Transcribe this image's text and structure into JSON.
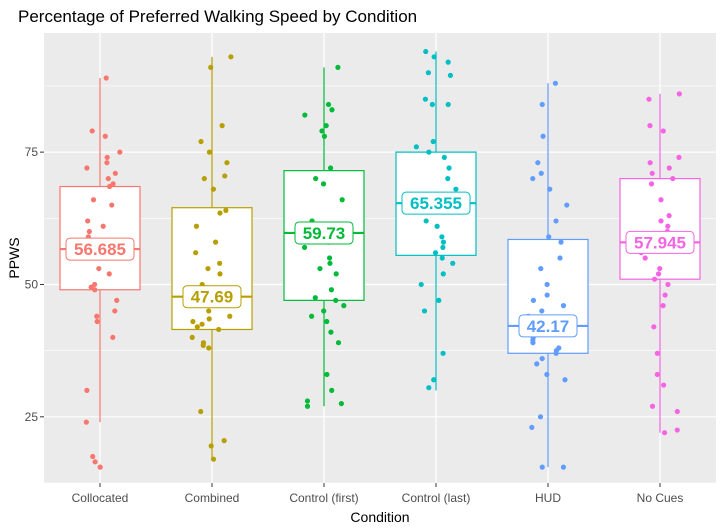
{
  "chart_data": {
    "type": "box",
    "title": "Percentage of Preferred Walking Speed by Condition",
    "xlabel": "Condition",
    "ylabel": "PPWS",
    "ylim": [
      12.5,
      97.5
    ],
    "yticks": [
      25,
      50,
      75
    ],
    "grid": true,
    "legend": "none",
    "categories": [
      "Collocated",
      "Combined",
      "Control (first)",
      "Control (last)",
      "HUD",
      "No Cues"
    ],
    "series": [
      {
        "category": "Collocated",
        "color": "#F8766D",
        "median_label": "56.685",
        "median": 56.685,
        "q1": 49.0,
        "q3": 68.5,
        "whisker_low": 24.0,
        "whisker_high": 89.0,
        "points": [
          89,
          79,
          78,
          75,
          74,
          73,
          72,
          71,
          70,
          69,
          68.5,
          66,
          65,
          62,
          61,
          60,
          59,
          58,
          57,
          56,
          55,
          53,
          52,
          50,
          49.5,
          49,
          47,
          45,
          44,
          43,
          40,
          30,
          24,
          17.5,
          16.5,
          15.5
        ]
      },
      {
        "category": "Combined",
        "color": "#B79F00",
        "median_label": "47.69",
        "median": 47.69,
        "q1": 41.5,
        "q3": 64.5,
        "whisker_low": 17.0,
        "whisker_high": 93.0,
        "points": [
          93,
          91,
          80,
          77,
          75,
          73,
          70.5,
          70,
          68,
          64,
          63.5,
          61,
          58,
          56,
          54,
          53,
          52,
          50,
          48,
          47,
          45,
          44,
          43.5,
          43,
          42.5,
          42,
          41.5,
          40,
          39,
          38.5,
          38,
          26,
          20.5,
          19.5,
          17
        ]
      },
      {
        "category": "Control (first)",
        "color": "#00BA38",
        "median_label": "59.73",
        "median": 59.73,
        "q1": 47.0,
        "q3": 71.5,
        "whisker_low": 27.0,
        "whisker_high": 91.0,
        "points": [
          91,
          84,
          83,
          82,
          80,
          79,
          78,
          72,
          70,
          69,
          66,
          62,
          61,
          59,
          58,
          57,
          55,
          54,
          53,
          52,
          49,
          47.5,
          47,
          46,
          45,
          44,
          43,
          41,
          39,
          33,
          30,
          28,
          27.5,
          27
        ]
      },
      {
        "category": "Control (last)",
        "color": "#00BFC4",
        "median_label": "65.355",
        "median": 65.355,
        "q1": 55.5,
        "q3": 75.0,
        "whisker_low": 30.0,
        "whisker_high": 94.0,
        "points": [
          94,
          93,
          92,
          90,
          89.5,
          85,
          84,
          84,
          77,
          76,
          75,
          74,
          72,
          70,
          68,
          67,
          66,
          65,
          64,
          62,
          61,
          59,
          58,
          57,
          56,
          55,
          54,
          52,
          50,
          47,
          45,
          37,
          32,
          30.5
        ]
      },
      {
        "category": "HUD",
        "color": "#619CFF",
        "median_label": "42.17",
        "median": 42.17,
        "q1": 37.0,
        "q3": 58.5,
        "whisker_low": 15.5,
        "whisker_high": 88.0,
        "points": [
          88,
          84,
          78,
          73,
          71,
          70,
          68,
          65,
          62,
          59,
          58,
          55,
          53,
          50,
          48,
          47,
          46,
          45,
          44,
          43,
          42,
          41,
          40,
          39.5,
          39,
          38,
          37.5,
          37,
          36,
          35,
          33,
          32,
          25,
          23,
          15.5,
          15.5
        ]
      },
      {
        "category": "No Cues",
        "color": "#F564E3",
        "median_label": "57.945",
        "median": 57.945,
        "q1": 51.0,
        "q3": 70.0,
        "whisker_low": 22.0,
        "whisker_high": 86.0,
        "points": [
          86,
          85,
          80,
          79,
          74,
          73,
          72,
          71,
          70,
          69,
          66,
          63,
          62,
          61,
          60,
          59,
          58,
          57,
          56,
          55,
          53,
          52,
          51,
          50,
          48,
          46,
          42,
          37,
          33,
          31,
          27,
          26,
          22.5,
          22
        ]
      }
    ]
  }
}
